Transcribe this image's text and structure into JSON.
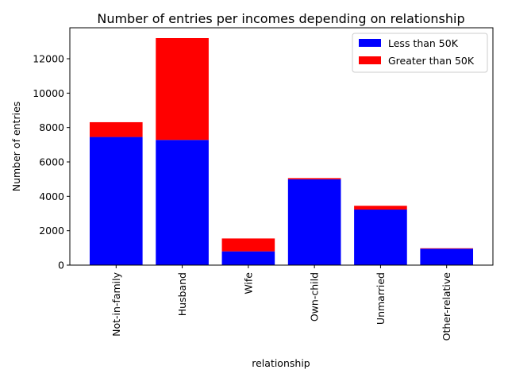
{
  "chart_data": {
    "type": "bar",
    "stacked": true,
    "title": "Number of entries per incomes depending on relationship",
    "xlabel": "relationship",
    "ylabel": "Number of entries",
    "categories": [
      "Not-in-family",
      "Husband",
      "Wife",
      "Own-child",
      "Unmarried",
      "Other-relative"
    ],
    "series": [
      {
        "name": "Less than 50K",
        "color": "#0000ff",
        "values": [
          7450,
          7280,
          800,
          4990,
          3230,
          950
        ]
      },
      {
        "name": "Greater than 50K",
        "color": "#ff0000",
        "values": [
          860,
          5920,
          750,
          70,
          220,
          30
        ]
      }
    ],
    "ylim": [
      0,
      13800
    ],
    "yticks": [
      0,
      2000,
      4000,
      6000,
      8000,
      10000,
      12000
    ],
    "ytick_labels": [
      "0",
      "2000",
      "4000",
      "6000",
      "8000",
      "10000",
      "12000"
    ],
    "grid": false,
    "legend_position": "top-right"
  }
}
